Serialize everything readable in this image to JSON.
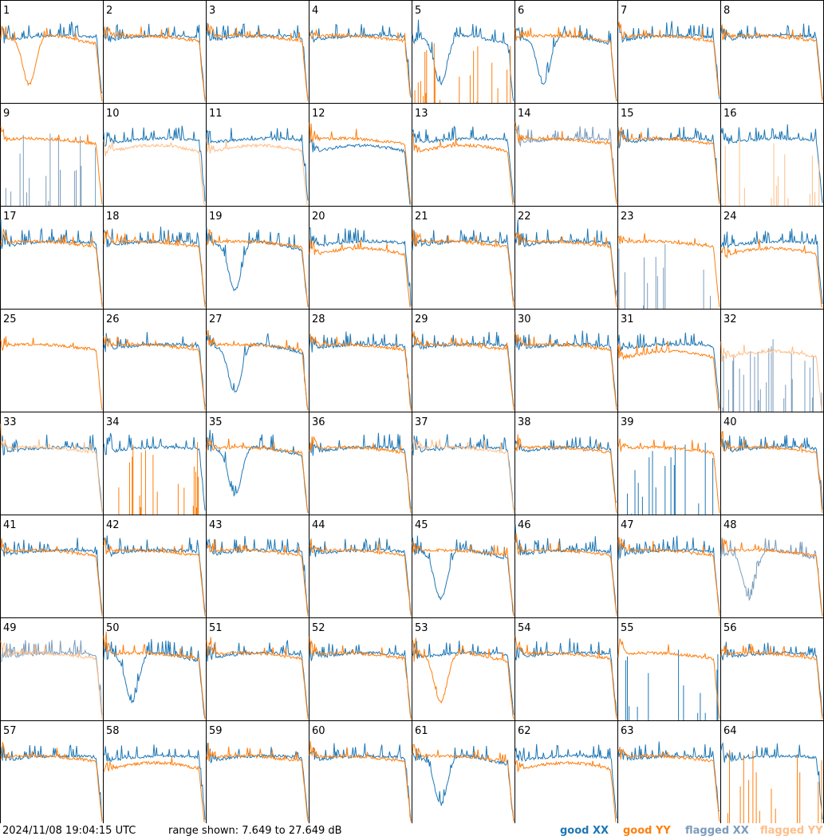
{
  "chart_data": {
    "type": "line",
    "panel_grid": {
      "rows": 8,
      "cols": 8
    },
    "ylim_db": [
      7.649,
      27.649
    ],
    "series": [
      {
        "name": "good XX",
        "color": "#1f77b4"
      },
      {
        "name": "good YY",
        "color": "#ff7f0e"
      },
      {
        "name": "flagged XX",
        "color": "#7b9cbc"
      },
      {
        "name": "flagged YY",
        "color": "#ffbe88"
      }
    ],
    "panels": [
      {
        "label": "1",
        "xx_status": "good",
        "yy_status": "good",
        "xx": "normal",
        "yy": "dip"
      },
      {
        "label": "2",
        "xx_status": "good",
        "yy_status": "good",
        "xx": "normal",
        "yy": "normal"
      },
      {
        "label": "3",
        "xx_status": "good",
        "yy_status": "good",
        "xx": "normal",
        "yy": "normal"
      },
      {
        "label": "4",
        "xx_status": "good",
        "yy_status": "good",
        "xx": "normal",
        "yy": "normal"
      },
      {
        "label": "5",
        "xx_status": "good",
        "yy_status": "good",
        "xx": "dip",
        "yy": "spikes"
      },
      {
        "label": "6",
        "xx_status": "good",
        "yy_status": "good",
        "xx": "dip",
        "yy": "normal"
      },
      {
        "label": "7",
        "xx_status": "good",
        "yy_status": "good",
        "xx": "normal",
        "yy": "normal"
      },
      {
        "label": "8",
        "xx_status": "good",
        "yy_status": "good",
        "xx": "normal",
        "yy": "normal"
      },
      {
        "label": "9",
        "xx_status": "flagged",
        "yy_status": "good",
        "xx": "spikes",
        "yy": "normal"
      },
      {
        "label": "10",
        "xx_status": "good",
        "yy_status": "flagged",
        "xx": "normal",
        "yy": "low"
      },
      {
        "label": "11",
        "xx_status": "good",
        "yy_status": "flagged",
        "xx": "normal",
        "yy": "low"
      },
      {
        "label": "12",
        "xx_status": "good",
        "yy_status": "good",
        "xx": "low",
        "yy": "normal"
      },
      {
        "label": "13",
        "xx_status": "good",
        "yy_status": "good",
        "xx": "normal",
        "yy": "low"
      },
      {
        "label": "14",
        "xx_status": "flagged",
        "yy_status": "good",
        "xx": "normal",
        "yy": "normal"
      },
      {
        "label": "15",
        "xx_status": "good",
        "yy_status": "good",
        "xx": "normal",
        "yy": "normal"
      },
      {
        "label": "16",
        "xx_status": "good",
        "yy_status": "flagged",
        "xx": "normal",
        "yy": "spikes"
      },
      {
        "label": "17",
        "xx_status": "good",
        "yy_status": "good",
        "xx": "normal",
        "yy": "normal"
      },
      {
        "label": "18",
        "xx_status": "good",
        "yy_status": "good",
        "xx": "normal",
        "yy": "normal"
      },
      {
        "label": "19",
        "xx_status": "good",
        "yy_status": "good",
        "xx": "dip",
        "yy": "normal"
      },
      {
        "label": "20",
        "xx_status": "good",
        "yy_status": "good",
        "xx": "normal",
        "yy": "low"
      },
      {
        "label": "21",
        "xx_status": "good",
        "yy_status": "good",
        "xx": "normal",
        "yy": "normal"
      },
      {
        "label": "22",
        "xx_status": "good",
        "yy_status": "good",
        "xx": "normal",
        "yy": "normal"
      },
      {
        "label": "23",
        "xx_status": "flagged",
        "yy_status": "good",
        "xx": "spikes",
        "yy": "normal"
      },
      {
        "label": "24",
        "xx_status": "good",
        "yy_status": "good",
        "xx": "normal",
        "yy": "low"
      },
      {
        "label": "25",
        "xx_status": "good",
        "yy_status": "good",
        "xx": "none",
        "yy": "normal"
      },
      {
        "label": "26",
        "xx_status": "good",
        "yy_status": "good",
        "xx": "normal",
        "yy": "normal"
      },
      {
        "label": "27",
        "xx_status": "good",
        "yy_status": "good",
        "xx": "dip",
        "yy": "normal"
      },
      {
        "label": "28",
        "xx_status": "good",
        "yy_status": "good",
        "xx": "normal",
        "yy": "normal"
      },
      {
        "label": "29",
        "xx_status": "good",
        "yy_status": "good",
        "xx": "normal",
        "yy": "normal"
      },
      {
        "label": "30",
        "xx_status": "good",
        "yy_status": "good",
        "xx": "normal",
        "yy": "normal"
      },
      {
        "label": "31",
        "xx_status": "good",
        "yy_status": "good",
        "xx": "normal",
        "yy": "low"
      },
      {
        "label": "32",
        "xx_status": "flagged",
        "yy_status": "flagged",
        "xx": "spikes",
        "yy": "low"
      },
      {
        "label": "33",
        "xx_status": "good",
        "yy_status": "flagged",
        "xx": "normal",
        "yy": "normal"
      },
      {
        "label": "34",
        "xx_status": "good",
        "yy_status": "good",
        "xx": "normal",
        "yy": "spikes"
      },
      {
        "label": "35",
        "xx_status": "good",
        "yy_status": "good",
        "xx": "dip",
        "yy": "normal"
      },
      {
        "label": "36",
        "xx_status": "good",
        "yy_status": "good",
        "xx": "normal",
        "yy": "normal"
      },
      {
        "label": "37",
        "xx_status": "good",
        "yy_status": "flagged",
        "xx": "normal",
        "yy": "normal"
      },
      {
        "label": "38",
        "xx_status": "good",
        "yy_status": "good",
        "xx": "normal",
        "yy": "normal"
      },
      {
        "label": "39",
        "xx_status": "good",
        "yy_status": "good",
        "xx": "spikes",
        "yy": "normal"
      },
      {
        "label": "40",
        "xx_status": "good",
        "yy_status": "good",
        "xx": "normal",
        "yy": "normal"
      },
      {
        "label": "41",
        "xx_status": "good",
        "yy_status": "good",
        "xx": "normal",
        "yy": "normal"
      },
      {
        "label": "42",
        "xx_status": "good",
        "yy_status": "good",
        "xx": "normal",
        "yy": "normal"
      },
      {
        "label": "43",
        "xx_status": "good",
        "yy_status": "good",
        "xx": "normal",
        "yy": "normal"
      },
      {
        "label": "44",
        "xx_status": "good",
        "yy_status": "good",
        "xx": "normal",
        "yy": "normal"
      },
      {
        "label": "45",
        "xx_status": "good",
        "yy_status": "good",
        "xx": "dip",
        "yy": "normal"
      },
      {
        "label": "46",
        "xx_status": "good",
        "yy_status": "good",
        "xx": "normal",
        "yy": "normal"
      },
      {
        "label": "47",
        "xx_status": "good",
        "yy_status": "good",
        "xx": "normal",
        "yy": "normal"
      },
      {
        "label": "48",
        "xx_status": "flagged",
        "yy_status": "good",
        "xx": "dip",
        "yy": "normal"
      },
      {
        "label": "49",
        "xx_status": "flagged",
        "yy_status": "flagged",
        "xx": "normal",
        "yy": "normal"
      },
      {
        "label": "50",
        "xx_status": "good",
        "yy_status": "good",
        "xx": "dip",
        "yy": "normal"
      },
      {
        "label": "51",
        "xx_status": "good",
        "yy_status": "good",
        "xx": "normal",
        "yy": "normal"
      },
      {
        "label": "52",
        "xx_status": "good",
        "yy_status": "good",
        "xx": "normal",
        "yy": "normal"
      },
      {
        "label": "53",
        "xx_status": "good",
        "yy_status": "good",
        "xx": "normal",
        "yy": "dip"
      },
      {
        "label": "54",
        "xx_status": "good",
        "yy_status": "good",
        "xx": "normal",
        "yy": "normal"
      },
      {
        "label": "55",
        "xx_status": "good",
        "yy_status": "good",
        "xx": "spikes",
        "yy": "normal"
      },
      {
        "label": "56",
        "xx_status": "good",
        "yy_status": "good",
        "xx": "normal",
        "yy": "normal"
      },
      {
        "label": "57",
        "xx_status": "good",
        "yy_status": "good",
        "xx": "normal",
        "yy": "normal"
      },
      {
        "label": "58",
        "xx_status": "good",
        "yy_status": "good",
        "xx": "normal",
        "yy": "low"
      },
      {
        "label": "59",
        "xx_status": "good",
        "yy_status": "good",
        "xx": "normal",
        "yy": "normal"
      },
      {
        "label": "60",
        "xx_status": "good",
        "yy_status": "good",
        "xx": "normal",
        "yy": "normal"
      },
      {
        "label": "61",
        "xx_status": "good",
        "yy_status": "good",
        "xx": "dip",
        "yy": "normal"
      },
      {
        "label": "62",
        "xx_status": "good",
        "yy_status": "good",
        "xx": "normal",
        "yy": "low"
      },
      {
        "label": "63",
        "xx_status": "good",
        "yy_status": "good",
        "xx": "normal",
        "yy": "normal"
      },
      {
        "label": "64",
        "xx_status": "good",
        "yy_status": "good",
        "xx": "normal",
        "yy": "spikes"
      }
    ]
  },
  "footer": {
    "timestamp": "2024/11/08 19:04:15 UTC",
    "range_text": "range shown: 7.649 to 27.649 dB"
  }
}
